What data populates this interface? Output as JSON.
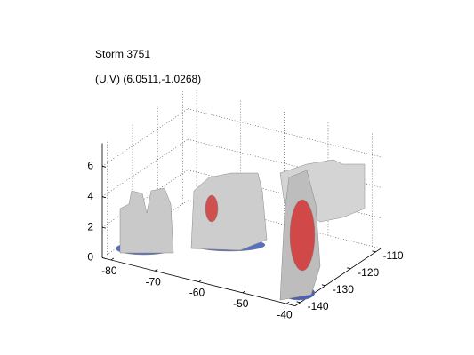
{
  "chart_data": {
    "type": "surface3d",
    "title": "Storm 3751",
    "subtitle": "(U,V) (6.0511,-1.0268)",
    "xlim": [
      -82,
      -38
    ],
    "ylim": [
      -142,
      -108
    ],
    "zlim": [
      0,
      7.5
    ],
    "xticks": [
      -80,
      -70,
      -60,
      -50,
      -40
    ],
    "yticks": [
      -140,
      -130,
      -120,
      -110
    ],
    "zticks": [
      0,
      2,
      4,
      6
    ],
    "grid": true
  }
}
